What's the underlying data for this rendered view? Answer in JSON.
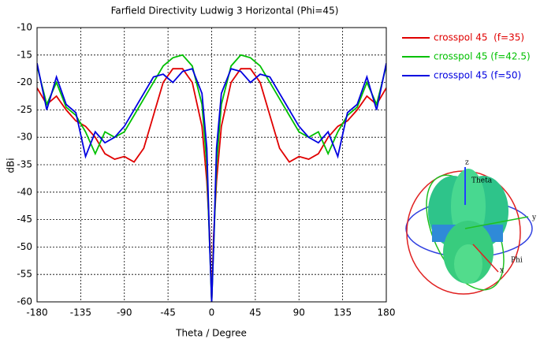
{
  "chart_data": {
    "type": "line",
    "title": "Farfield Directivity Ludwig 3 Horizontal (Phi=45)",
    "x_label": "Theta / Degree",
    "y_label": "dBi",
    "x": [
      -180,
      -170,
      -160,
      -150,
      -140,
      -130,
      -120,
      -110,
      -100,
      -90,
      -80,
      -70,
      -60,
      -50,
      -40,
      -30,
      -20,
      -10,
      -5,
      -2,
      0,
      2,
      5,
      10,
      20,
      30,
      40,
      50,
      60,
      70,
      80,
      90,
      100,
      110,
      120,
      130,
      140,
      150,
      160,
      170,
      180
    ],
    "series": [
      {
        "name": "crosspol 45  (f=35)",
        "color": "#e00000",
        "values": [
          -21,
          -24,
          -22.5,
          -25,
          -27,
          -28,
          -30,
          -33,
          -34,
          -33.5,
          -34.5,
          -32,
          -26,
          -20,
          -17.5,
          -17.5,
          -20,
          -28,
          -38,
          -48,
          -60,
          -48,
          -38,
          -28,
          -20,
          -17.5,
          -17.5,
          -20,
          -26,
          -32,
          -34.5,
          -33.5,
          -34,
          -33,
          -30,
          -28,
          -27,
          -25,
          -22.5,
          -24,
          -21
        ]
      },
      {
        "name": "crosspol 45 (f=42.5)",
        "color": "#00c000",
        "values": [
          -17,
          -24,
          -20,
          -24.5,
          -26,
          -29,
          -33,
          -29,
          -30,
          -29,
          -26,
          -23,
          -20,
          -17,
          -15.5,
          -15,
          -17,
          -24,
          -35,
          -50,
          -60,
          -50,
          -35,
          -24,
          -17,
          -15,
          -15.5,
          -17,
          -20,
          -23,
          -26,
          -29,
          -30,
          -29,
          -33,
          -29,
          -26,
          -24.5,
          -20,
          -24,
          -17
        ]
      },
      {
        "name": "crosspol 45 (f=50)",
        "color": "#0000e0",
        "values": [
          -16.5,
          -25,
          -19,
          -24,
          -25.5,
          -33.5,
          -29,
          -31,
          -30,
          -28,
          -25,
          -22,
          -19,
          -18.5,
          -20,
          -18,
          -17.5,
          -22,
          -32,
          -50,
          -60,
          -50,
          -32,
          -22,
          -17.5,
          -18,
          -20,
          -18.5,
          -19,
          -22,
          -25,
          -28,
          -30,
          -31,
          -29,
          -33.5,
          -25.5,
          -24,
          -19,
          -25,
          -16.5
        ]
      }
    ],
    "xlim": [
      -180,
      180
    ],
    "xticks": [
      -180,
      -135,
      -90,
      -45,
      0,
      45,
      90,
      135,
      180
    ],
    "ylim": [
      -60,
      -10
    ],
    "yticks": [
      -10,
      -15,
      -20,
      -25,
      -30,
      -35,
      -40,
      -45,
      -50,
      -55,
      -60
    ],
    "grid": true,
    "legend": "right",
    "inset_labels": [
      "z",
      "Theta",
      "y",
      "Phi",
      "x"
    ]
  }
}
